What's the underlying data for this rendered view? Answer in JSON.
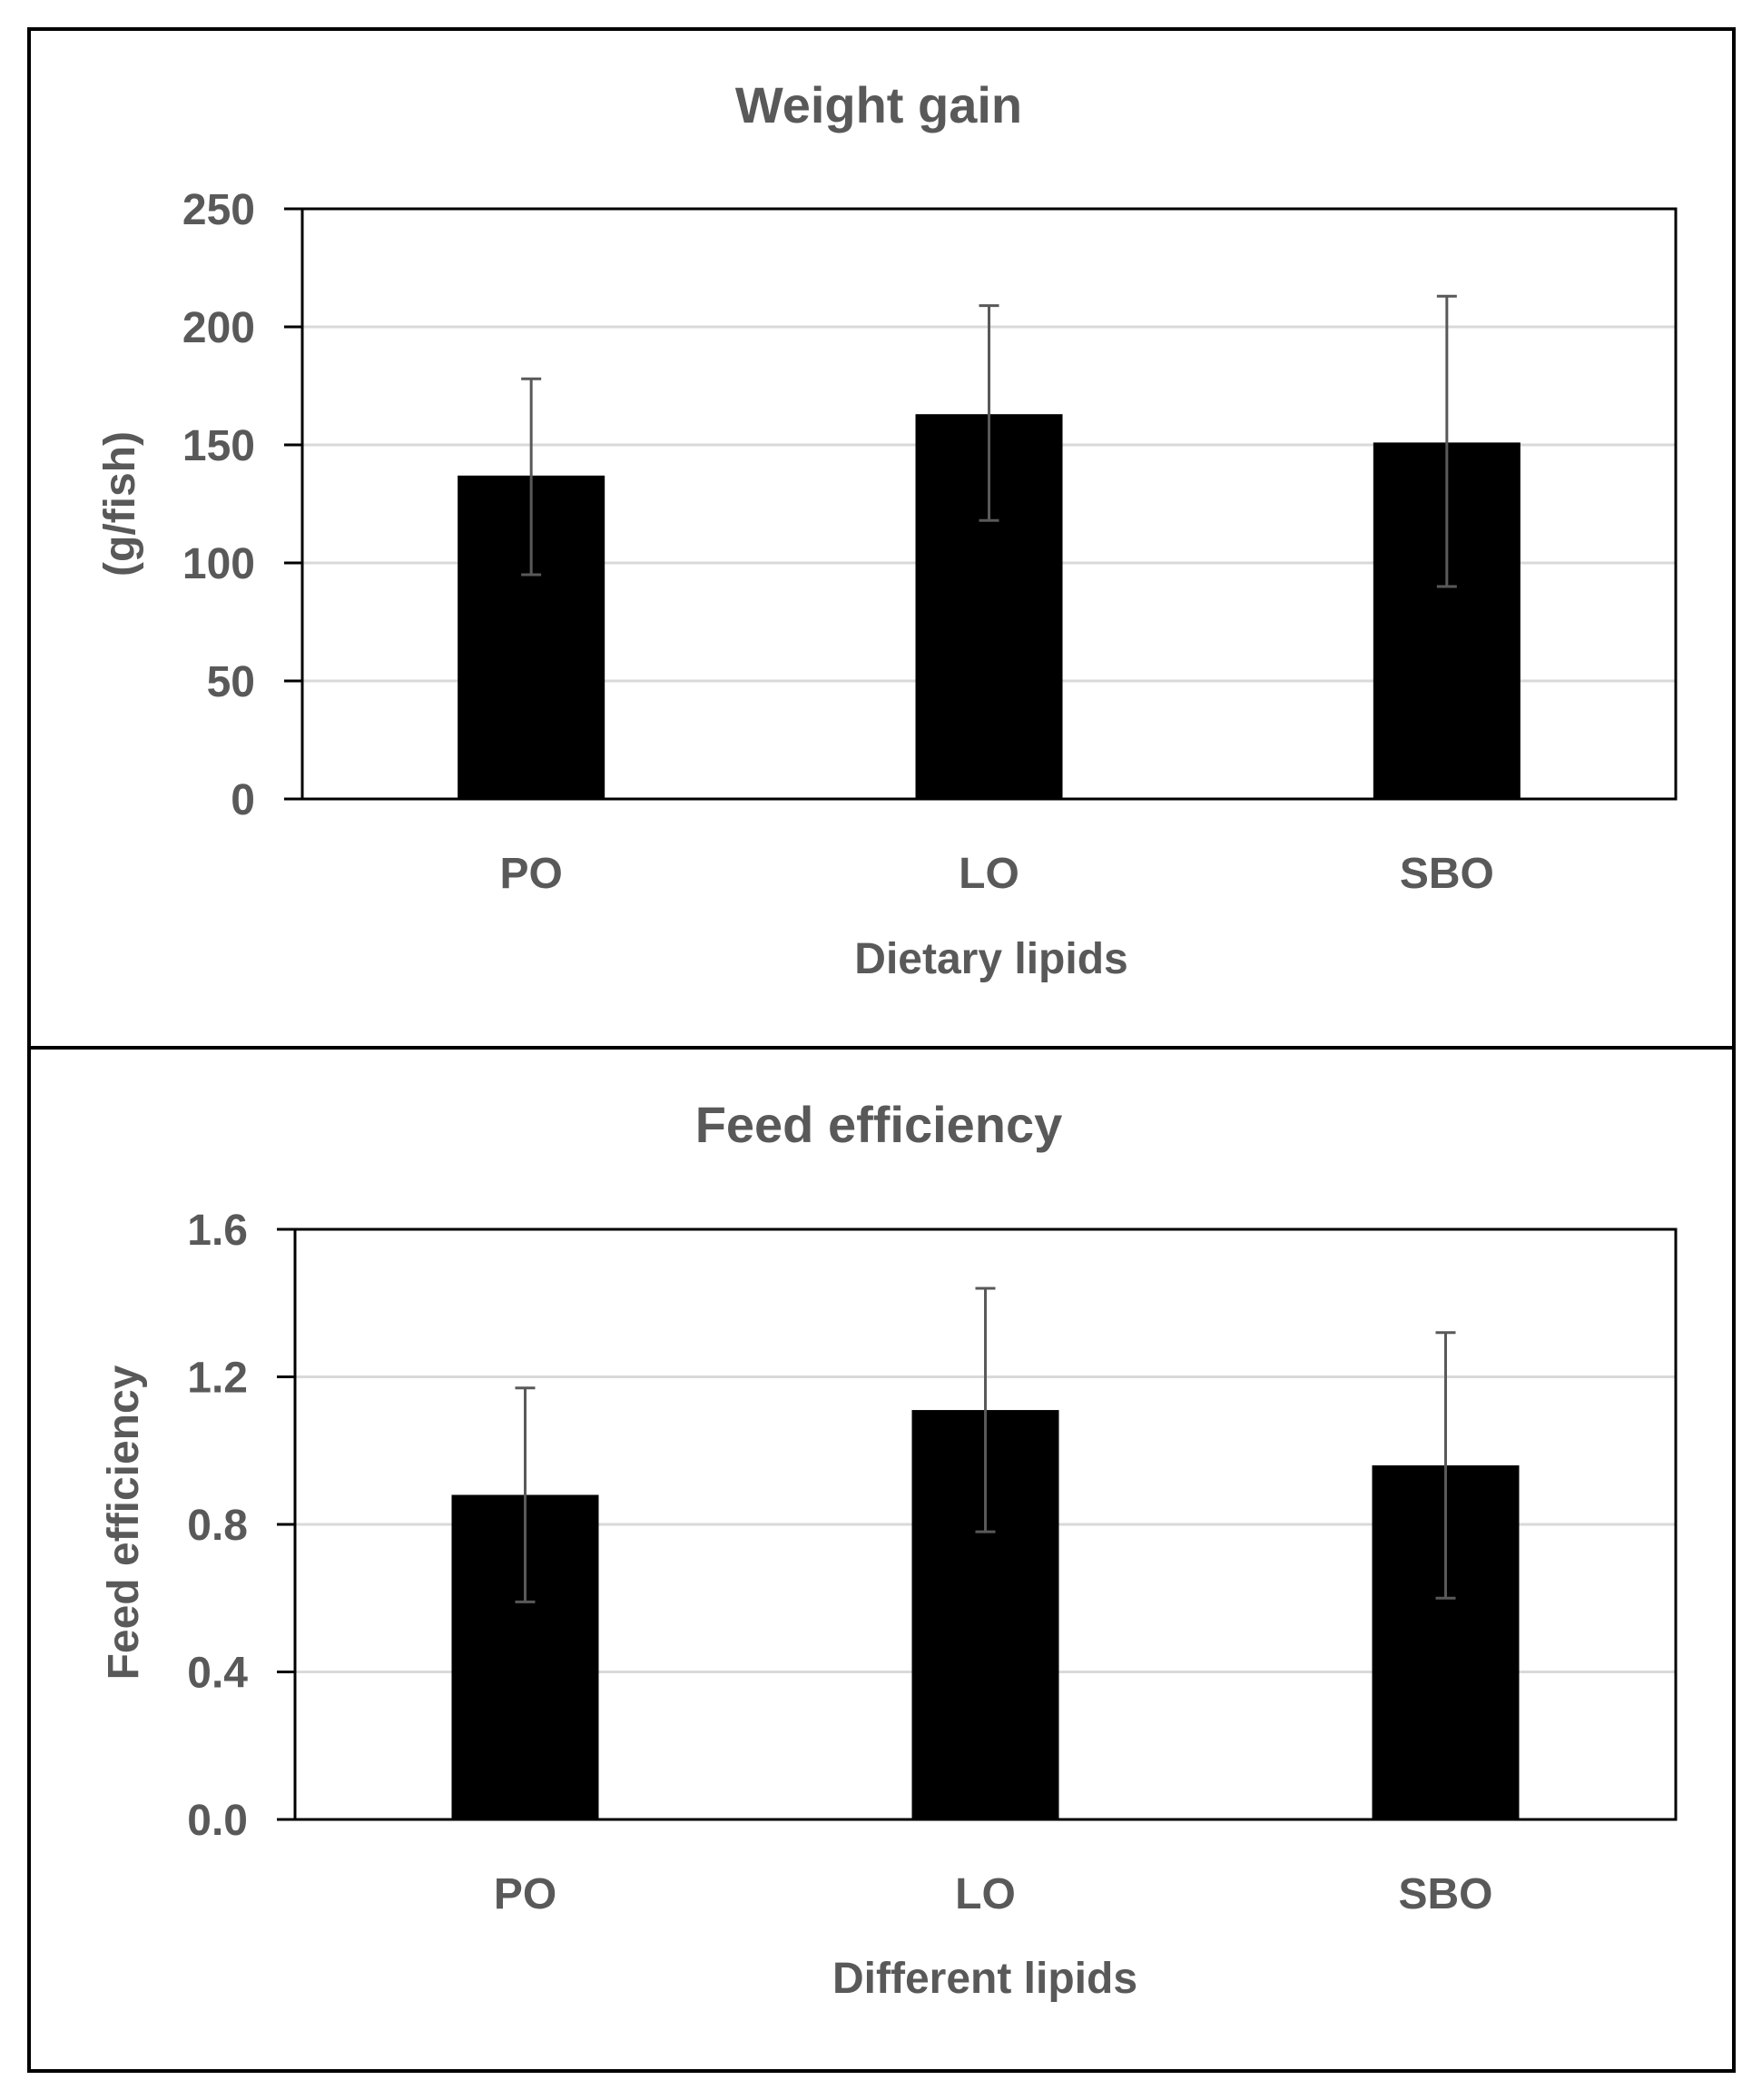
{
  "chart_data": [
    {
      "type": "bar",
      "title": "Weight gain",
      "xlabel": "Dietary lipids",
      "ylabel": "(g/fish)",
      "categories": [
        "PO",
        "LO",
        "SBO"
      ],
      "values": [
        137,
        163,
        151
      ],
      "error_low": [
        95,
        118,
        90
      ],
      "error_high": [
        178,
        209,
        213
      ],
      "ylim": [
        0,
        250
      ],
      "yticks": [
        0,
        50,
        100,
        150,
        200,
        250
      ],
      "ytick_labels": [
        "0",
        "50",
        "100",
        "150",
        "200",
        "250"
      ],
      "grid": true,
      "legend": "none",
      "bar_color": "#000000"
    },
    {
      "type": "bar",
      "title": "Feed efficiency",
      "xlabel": "Different lipids",
      "ylabel": "Feed efficiency",
      "categories": [
        "PO",
        "LO",
        "SBO"
      ],
      "values": [
        0.88,
        1.11,
        0.96
      ],
      "error_low": [
        0.59,
        0.78,
        0.6
      ],
      "error_high": [
        1.17,
        1.44,
        1.32
      ],
      "ylim": [
        0,
        1.6
      ],
      "yticks": [
        0,
        0.4,
        0.8,
        1.2,
        1.6
      ],
      "ytick_labels": [
        "0.0",
        "0.4",
        "0.8",
        "1.2",
        "1.6"
      ],
      "grid": true,
      "legend": "none",
      "bar_color": "#000000"
    }
  ]
}
